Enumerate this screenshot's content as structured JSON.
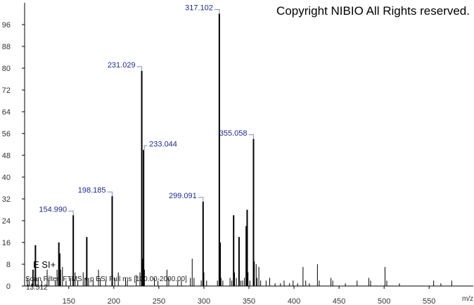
{
  "chart_data": {
    "type": "bar",
    "title": "Copyright NIBIO All Rights reserved.",
    "polarity": "E SI+",
    "scan_filter": "Scan Filter: FTMS + p ESI Full ms [100.00-2000.00]",
    "retention_time": "13.512",
    "x_label": "m/z",
    "color": "#000000",
    "label_color": "#1f2a8a",
    "x": [
      104,
      106,
      109,
      110,
      111,
      113,
      116,
      120,
      126,
      128,
      135,
      137,
      139,
      140,
      141,
      143,
      147,
      152,
      154.99,
      157,
      160,
      166,
      168,
      170,
      172,
      177,
      183,
      185,
      191,
      198.185,
      201,
      205,
      213,
      215,
      225,
      229,
      231.029,
      232,
      233.044,
      234,
      245,
      249,
      259,
      261,
      271,
      275,
      285,
      287,
      289,
      297,
      299.091,
      300,
      303,
      315,
      317.102,
      318,
      319,
      321,
      329,
      331,
      333,
      334,
      336,
      339,
      341,
      343,
      345,
      347,
      348,
      349,
      351,
      355.058,
      356,
      358,
      359,
      361,
      363,
      369,
      373,
      379,
      385,
      389,
      395,
      399,
      404,
      410,
      413,
      417,
      426,
      428,
      441,
      443,
      457,
      470,
      483,
      485,
      501,
      503,
      517,
      555,
      563,
      575
    ],
    "values": [
      3,
      2,
      1,
      6,
      6,
      15,
      3,
      2,
      6,
      2,
      2,
      6,
      16,
      12,
      6,
      7,
      2,
      3,
      26,
      5,
      2,
      5,
      3,
      18,
      3,
      2,
      6,
      3,
      2,
      33,
      3,
      5,
      3,
      2,
      4,
      5,
      79,
      10,
      50,
      6,
      3,
      2,
      6,
      3,
      2,
      2,
      3,
      10,
      3,
      2,
      31,
      5,
      2,
      2,
      100,
      16,
      3,
      2,
      3,
      2,
      26,
      5,
      3,
      18,
      2,
      2,
      3,
      22,
      28,
      5,
      2,
      54,
      9,
      8,
      3,
      7,
      2,
      2,
      3,
      1,
      1,
      2,
      1,
      2,
      1,
      7,
      2,
      1,
      8,
      2,
      3,
      2,
      1,
      2,
      3,
      2,
      7,
      2,
      1,
      2,
      1,
      2
    ],
    "peak_labels": [
      null,
      null,
      null,
      null,
      null,
      null,
      null,
      null,
      null,
      null,
      null,
      null,
      null,
      null,
      null,
      null,
      null,
      null,
      "154.990",
      null,
      null,
      null,
      null,
      null,
      null,
      null,
      null,
      null,
      null,
      "198.185",
      null,
      null,
      null,
      null,
      null,
      null,
      "231.029",
      null,
      "233.044",
      null,
      null,
      null,
      null,
      null,
      null,
      null,
      null,
      null,
      null,
      null,
      "299.091",
      null,
      null,
      null,
      "317.102",
      null,
      null,
      null,
      null,
      null,
      null,
      null,
      null,
      null,
      null,
      null,
      null,
      null,
      null,
      null,
      null,
      "355.058",
      null,
      null,
      null,
      null,
      null,
      null,
      null,
      null,
      null,
      null,
      null,
      null,
      null,
      null,
      null,
      null,
      null,
      null,
      null,
      null,
      null,
      null,
      null,
      null,
      null,
      null,
      null,
      null,
      null,
      null
    ],
    "xlim": [
      101,
      599
    ],
    "ylim": [
      0,
      104
    ],
    "xticks": [
      150,
      200,
      250,
      300,
      350,
      400,
      450,
      500,
      550
    ],
    "yticks": [
      0,
      8,
      16,
      24,
      32,
      40,
      48,
      56,
      64,
      72,
      80,
      88,
      96
    ]
  }
}
